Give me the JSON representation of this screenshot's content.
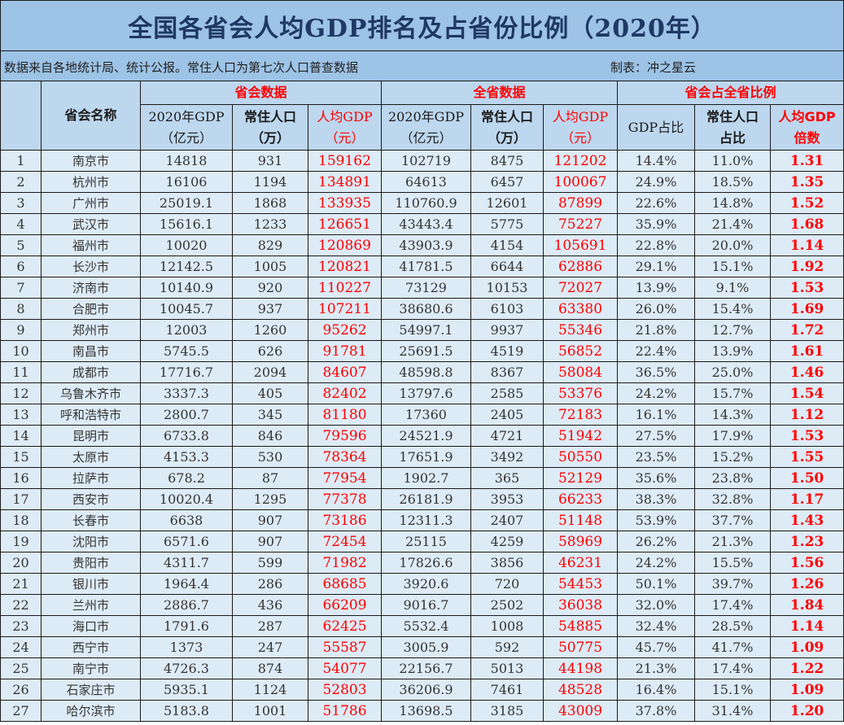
{
  "title": "全国各省会人均GDP排名及占省份比例（2020年）",
  "source_note": "数据来自各地统计局、统计公报。常住人口为第七次人口普查数据",
  "author_note": "制表：冲之星云",
  "header": {
    "name_col": "省会名称",
    "groups": {
      "capital": "省会数据",
      "province": "全省数据",
      "ratio": "省会占全省比例"
    },
    "capital_cols": {
      "gdp": [
        "2020年GDP",
        "（亿元）"
      ],
      "pop": [
        "常住人口",
        "（万）"
      ],
      "per_capita": [
        "人均GDP",
        "（元）"
      ]
    },
    "province_cols": {
      "gdp": [
        "2020年GDP",
        "（亿元）"
      ],
      "pop": [
        "常住人口",
        "（万）"
      ],
      "per_capita": [
        "人均GDP",
        "（元）"
      ]
    },
    "ratio_cols": {
      "gdp_share": "GDP占比",
      "pop_share": [
        "常住人口",
        "占比"
      ],
      "per_capita_multiple": [
        "人均GDP",
        "倍数"
      ]
    }
  },
  "colors": {
    "title_bg": "#9dc3e6",
    "header_bg": "#bdd7ee",
    "row_bg": "#ddebf7",
    "title_text": "#1f3864",
    "accent_red": "#ff0000"
  },
  "rows": [
    {
      "rank": "1",
      "name": "南京市",
      "cap_gdp": "14818",
      "cap_pop": "931",
      "cap_pc": "159162",
      "prov_gdp": "102719",
      "prov_pop": "8475",
      "prov_pc": "121202",
      "gdp_share": "14.4%",
      "pop_share": "11.0%",
      "multiple": "1.31"
    },
    {
      "rank": "2",
      "name": "杭州市",
      "cap_gdp": "16106",
      "cap_pop": "1194",
      "cap_pc": "134891",
      "prov_gdp": "64613",
      "prov_pop": "6457",
      "prov_pc": "100067",
      "gdp_share": "24.9%",
      "pop_share": "18.5%",
      "multiple": "1.35"
    },
    {
      "rank": "3",
      "name": "广州市",
      "cap_gdp": "25019.1",
      "cap_pop": "1868",
      "cap_pc": "133935",
      "prov_gdp": "110760.9",
      "prov_pop": "12601",
      "prov_pc": "87899",
      "gdp_share": "22.6%",
      "pop_share": "14.8%",
      "multiple": "1.52"
    },
    {
      "rank": "4",
      "name": "武汉市",
      "cap_gdp": "15616.1",
      "cap_pop": "1233",
      "cap_pc": "126651",
      "prov_gdp": "43443.4",
      "prov_pop": "5775",
      "prov_pc": "75227",
      "gdp_share": "35.9%",
      "pop_share": "21.4%",
      "multiple": "1.68"
    },
    {
      "rank": "5",
      "name": "福州市",
      "cap_gdp": "10020",
      "cap_pop": "829",
      "cap_pc": "120869",
      "prov_gdp": "43903.9",
      "prov_pop": "4154",
      "prov_pc": "105691",
      "gdp_share": "22.8%",
      "pop_share": "20.0%",
      "multiple": "1.14"
    },
    {
      "rank": "6",
      "name": "长沙市",
      "cap_gdp": "12142.5",
      "cap_pop": "1005",
      "cap_pc": "120821",
      "prov_gdp": "41781.5",
      "prov_pop": "6644",
      "prov_pc": "62886",
      "gdp_share": "29.1%",
      "pop_share": "15.1%",
      "multiple": "1.92"
    },
    {
      "rank": "7",
      "name": "济南市",
      "cap_gdp": "10140.9",
      "cap_pop": "920",
      "cap_pc": "110227",
      "prov_gdp": "73129",
      "prov_pop": "10153",
      "prov_pc": "72027",
      "gdp_share": "13.9%",
      "pop_share": "9.1%",
      "multiple": "1.53"
    },
    {
      "rank": "8",
      "name": "合肥市",
      "cap_gdp": "10045.7",
      "cap_pop": "937",
      "cap_pc": "107211",
      "prov_gdp": "38680.6",
      "prov_pop": "6103",
      "prov_pc": "63380",
      "gdp_share": "26.0%",
      "pop_share": "15.4%",
      "multiple": "1.69"
    },
    {
      "rank": "9",
      "name": "郑州市",
      "cap_gdp": "12003",
      "cap_pop": "1260",
      "cap_pc": "95262",
      "prov_gdp": "54997.1",
      "prov_pop": "9937",
      "prov_pc": "55346",
      "gdp_share": "21.8%",
      "pop_share": "12.7%",
      "multiple": "1.72"
    },
    {
      "rank": "10",
      "name": "南昌市",
      "cap_gdp": "5745.5",
      "cap_pop": "626",
      "cap_pc": "91781",
      "prov_gdp": "25691.5",
      "prov_pop": "4519",
      "prov_pc": "56852",
      "gdp_share": "22.4%",
      "pop_share": "13.9%",
      "multiple": "1.61"
    },
    {
      "rank": "11",
      "name": "成都市",
      "cap_gdp": "17716.7",
      "cap_pop": "2094",
      "cap_pc": "84607",
      "prov_gdp": "48598.8",
      "prov_pop": "8367",
      "prov_pc": "58084",
      "gdp_share": "36.5%",
      "pop_share": "25.0%",
      "multiple": "1.46"
    },
    {
      "rank": "12",
      "name": "乌鲁木齐市",
      "cap_gdp": "3337.3",
      "cap_pop": "405",
      "cap_pc": "82402",
      "prov_gdp": "13797.6",
      "prov_pop": "2585",
      "prov_pc": "53376",
      "gdp_share": "24.2%",
      "pop_share": "15.7%",
      "multiple": "1.54"
    },
    {
      "rank": "13",
      "name": "呼和浩特市",
      "cap_gdp": "2800.7",
      "cap_pop": "345",
      "cap_pc": "81180",
      "prov_gdp": "17360",
      "prov_pop": "2405",
      "prov_pc": "72183",
      "gdp_share": "16.1%",
      "pop_share": "14.3%",
      "multiple": "1.12"
    },
    {
      "rank": "14",
      "name": "昆明市",
      "cap_gdp": "6733.8",
      "cap_pop": "846",
      "cap_pc": "79596",
      "prov_gdp": "24521.9",
      "prov_pop": "4721",
      "prov_pc": "51942",
      "gdp_share": "27.5%",
      "pop_share": "17.9%",
      "multiple": "1.53"
    },
    {
      "rank": "15",
      "name": "太原市",
      "cap_gdp": "4153.3",
      "cap_pop": "530",
      "cap_pc": "78364",
      "prov_gdp": "17651.9",
      "prov_pop": "3492",
      "prov_pc": "50550",
      "gdp_share": "23.5%",
      "pop_share": "15.2%",
      "multiple": "1.55"
    },
    {
      "rank": "16",
      "name": "拉萨市",
      "cap_gdp": "678.2",
      "cap_pop": "87",
      "cap_pc": "77954",
      "prov_gdp": "1902.7",
      "prov_pop": "365",
      "prov_pc": "52129",
      "gdp_share": "35.6%",
      "pop_share": "23.8%",
      "multiple": "1.50"
    },
    {
      "rank": "17",
      "name": "西安市",
      "cap_gdp": "10020.4",
      "cap_pop": "1295",
      "cap_pc": "77378",
      "prov_gdp": "26181.9",
      "prov_pop": "3953",
      "prov_pc": "66233",
      "gdp_share": "38.3%",
      "pop_share": "32.8%",
      "multiple": "1.17"
    },
    {
      "rank": "18",
      "name": "长春市",
      "cap_gdp": "6638",
      "cap_pop": "907",
      "cap_pc": "73186",
      "prov_gdp": "12311.3",
      "prov_pop": "2407",
      "prov_pc": "51148",
      "gdp_share": "53.9%",
      "pop_share": "37.7%",
      "multiple": "1.43"
    },
    {
      "rank": "19",
      "name": "沈阳市",
      "cap_gdp": "6571.6",
      "cap_pop": "907",
      "cap_pc": "72454",
      "prov_gdp": "25115",
      "prov_pop": "4259",
      "prov_pc": "58969",
      "gdp_share": "26.2%",
      "pop_share": "21.3%",
      "multiple": "1.23"
    },
    {
      "rank": "20",
      "name": "贵阳市",
      "cap_gdp": "4311.7",
      "cap_pop": "599",
      "cap_pc": "71982",
      "prov_gdp": "17826.6",
      "prov_pop": "3856",
      "prov_pc": "46231",
      "gdp_share": "24.2%",
      "pop_share": "15.5%",
      "multiple": "1.56"
    },
    {
      "rank": "21",
      "name": "银川市",
      "cap_gdp": "1964.4",
      "cap_pop": "286",
      "cap_pc": "68685",
      "prov_gdp": "3920.6",
      "prov_pop": "720",
      "prov_pc": "54453",
      "gdp_share": "50.1%",
      "pop_share": "39.7%",
      "multiple": "1.26"
    },
    {
      "rank": "22",
      "name": "兰州市",
      "cap_gdp": "2886.7",
      "cap_pop": "436",
      "cap_pc": "66209",
      "prov_gdp": "9016.7",
      "prov_pop": "2502",
      "prov_pc": "36038",
      "gdp_share": "32.0%",
      "pop_share": "17.4%",
      "multiple": "1.84"
    },
    {
      "rank": "23",
      "name": "海口市",
      "cap_gdp": "1791.6",
      "cap_pop": "287",
      "cap_pc": "62425",
      "prov_gdp": "5532.4",
      "prov_pop": "1008",
      "prov_pc": "54885",
      "gdp_share": "32.4%",
      "pop_share": "28.5%",
      "multiple": "1.14"
    },
    {
      "rank": "24",
      "name": "西宁市",
      "cap_gdp": "1373",
      "cap_pop": "247",
      "cap_pc": "55587",
      "prov_gdp": "3005.9",
      "prov_pop": "592",
      "prov_pc": "50775",
      "gdp_share": "45.7%",
      "pop_share": "41.7%",
      "multiple": "1.09"
    },
    {
      "rank": "25",
      "name": "南宁市",
      "cap_gdp": "4726.3",
      "cap_pop": "874",
      "cap_pc": "54077",
      "prov_gdp": "22156.7",
      "prov_pop": "5013",
      "prov_pc": "44198",
      "gdp_share": "21.3%",
      "pop_share": "17.4%",
      "multiple": "1.22"
    },
    {
      "rank": "26",
      "name": "石家庄市",
      "cap_gdp": "5935.1",
      "cap_pop": "1124",
      "cap_pc": "52803",
      "prov_gdp": "36206.9",
      "prov_pop": "7461",
      "prov_pc": "48528",
      "gdp_share": "16.4%",
      "pop_share": "15.1%",
      "multiple": "1.09"
    },
    {
      "rank": "27",
      "name": "哈尔滨市",
      "cap_gdp": "5183.8",
      "cap_pop": "1001",
      "cap_pc": "51786",
      "prov_gdp": "13698.5",
      "prov_pop": "3185",
      "prov_pc": "43009",
      "gdp_share": "37.8%",
      "pop_share": "31.4%",
      "multiple": "1.20"
    }
  ]
}
